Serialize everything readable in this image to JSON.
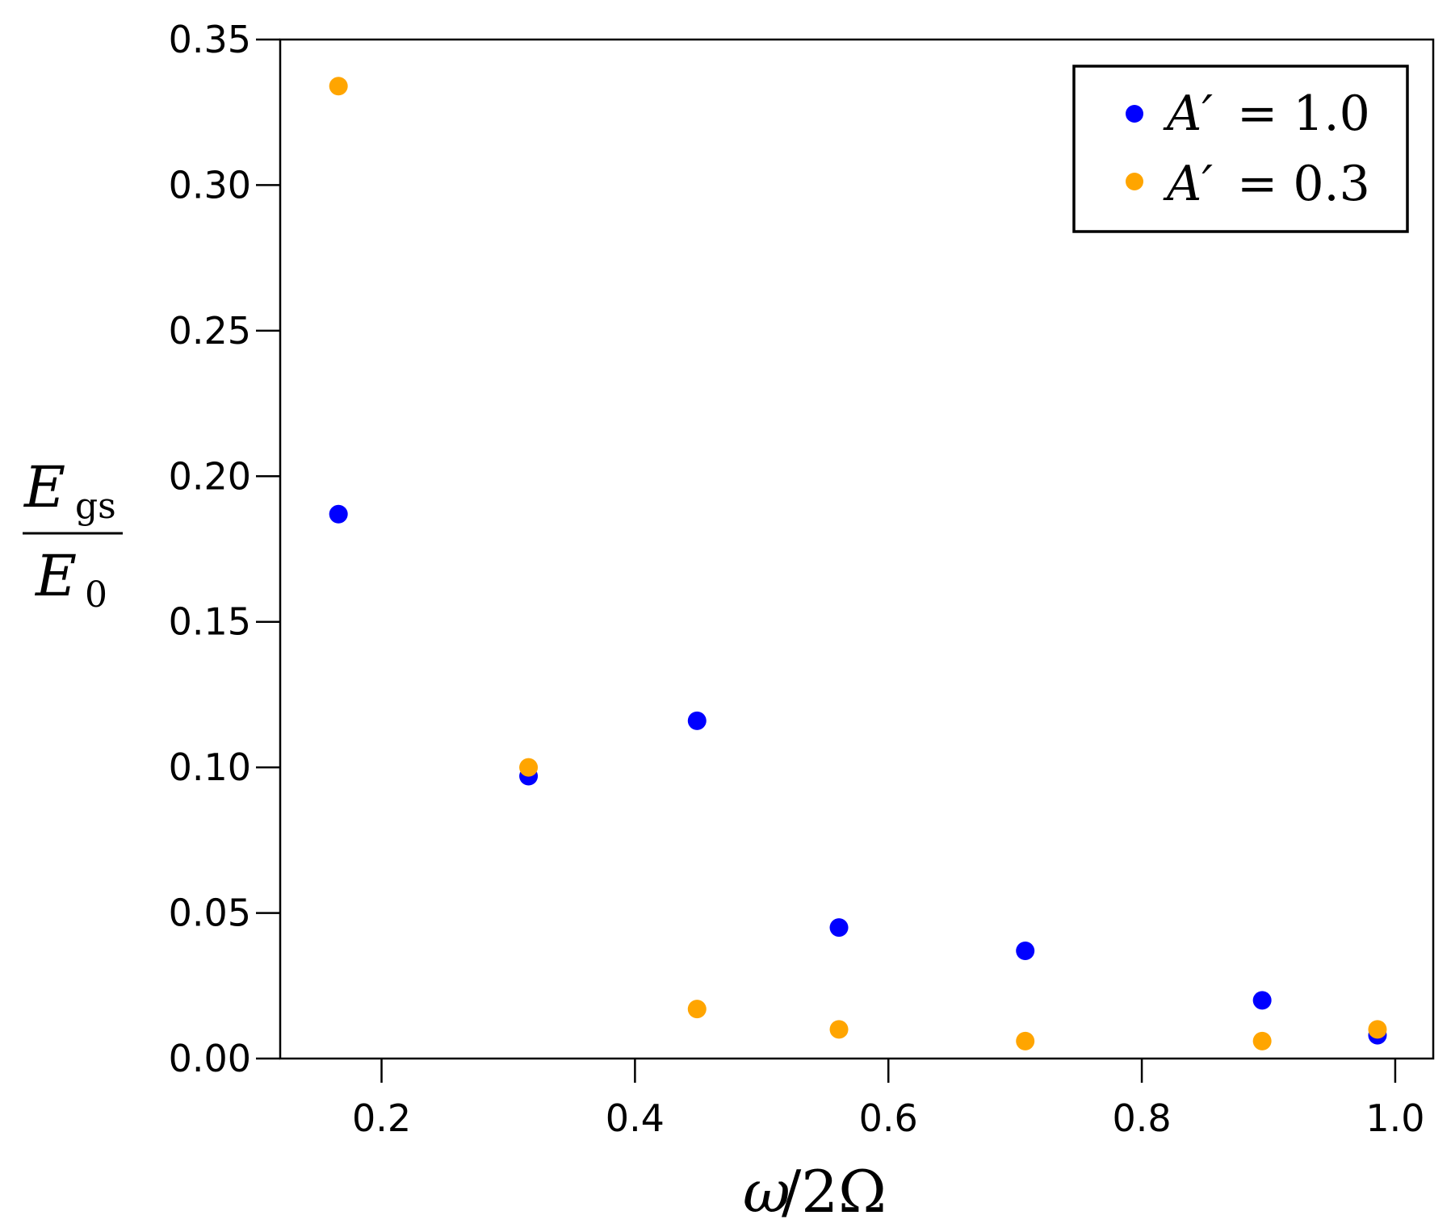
{
  "chart_data": {
    "type": "scatter",
    "title": "",
    "xlabel": {
      "var": "ω",
      "rest": "/2Ω"
    },
    "ylabel": {
      "numerator": "E",
      "numerator_sub": "gs",
      "denominator": "E",
      "denominator_sub": "0"
    },
    "xlim": [
      0.12,
      1.03
    ],
    "ylim": [
      0.0,
      0.35
    ],
    "xticks": [
      0.2,
      0.4,
      0.6,
      0.8,
      1.0
    ],
    "xtick_labels": [
      "0.2",
      "0.4",
      "0.6",
      "0.8",
      "1.0"
    ],
    "yticks": [
      0.0,
      0.05,
      0.1,
      0.15,
      0.2,
      0.25,
      0.3,
      0.35
    ],
    "ytick_labels": [
      "0.00",
      "0.05",
      "0.10",
      "0.15",
      "0.20",
      "0.25",
      "0.30",
      "0.35"
    ],
    "grid": false,
    "legend_position": "top-right",
    "series": [
      {
        "name": "A′ = 1.0",
        "legend_var": "A′",
        "legend_value": "= 1.0",
        "color": "#0000ff",
        "x": [
          0.166,
          0.316,
          0.449,
          0.561,
          0.708,
          0.895,
          0.986
        ],
        "y": [
          0.187,
          0.097,
          0.116,
          0.045,
          0.037,
          0.02,
          0.008
        ]
      },
      {
        "name": "A′ = 0.3",
        "legend_var": "A′",
        "legend_value": "= 0.3",
        "color": "#ffa500",
        "x": [
          0.166,
          0.316,
          0.449,
          0.561,
          0.708,
          0.895,
          0.986
        ],
        "y": [
          0.334,
          0.1,
          0.017,
          0.01,
          0.006,
          0.006,
          0.01
        ]
      }
    ]
  }
}
